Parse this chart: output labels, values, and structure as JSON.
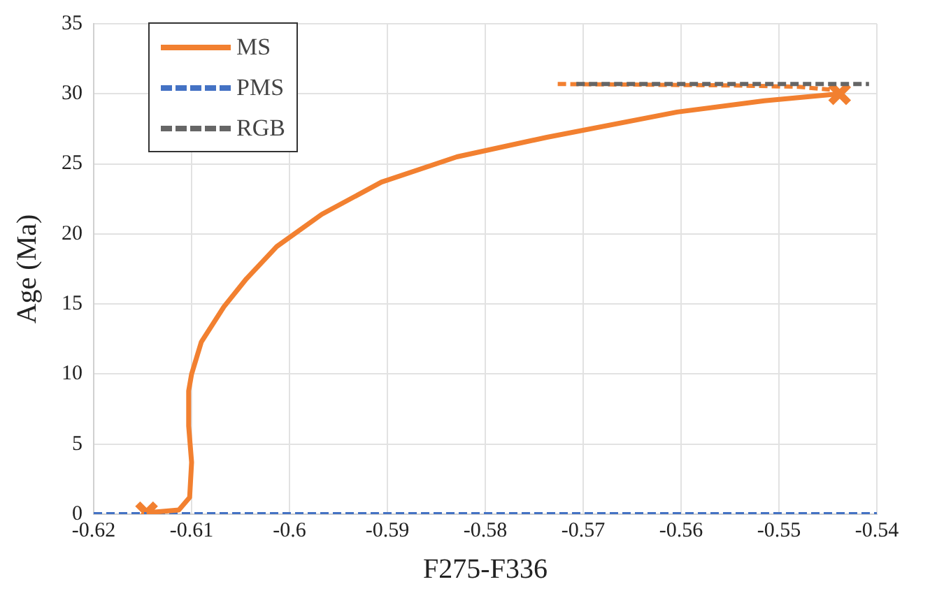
{
  "chart_data": {
    "type": "line",
    "xlabel": "F275-F336",
    "ylabel": "Age (Ma)",
    "xlim": [
      -0.62,
      -0.54
    ],
    "xticks": [
      -0.62,
      -0.61,
      -0.6,
      -0.59,
      -0.58,
      -0.57,
      -0.56,
      -0.55,
      -0.54
    ],
    "ylim": [
      0,
      35
    ],
    "yticks": [
      0,
      5,
      10,
      15,
      20,
      25,
      30,
      35
    ],
    "grid": true,
    "legend": "top left",
    "series": [
      {
        "name": "MS",
        "type": "line",
        "color": "#f28030",
        "line_style": "solid",
        "marker": "none",
        "x": [
          -0.6146,
          -0.6113,
          -0.6102,
          -0.61,
          -0.6103,
          -0.6103,
          -0.61,
          -0.609,
          -0.6067,
          -0.6044,
          -0.6013,
          -0.5967,
          -0.5906,
          -0.5829,
          -0.5737,
          -0.5604,
          -0.5515,
          -0.5438
        ],
        "values": [
          0.1,
          0.3,
          1.2,
          3.7,
          6.3,
          8.8,
          10,
          12.3,
          14.8,
          16.8,
          19.1,
          21.4,
          23.7,
          25.5,
          26.9,
          28.7,
          29.5,
          30
        ]
      },
      {
        "name": "PMS",
        "type": "line",
        "color": "#4472c4",
        "line_style": "dashed",
        "marker": "none",
        "x": [
          -0.62,
          -0.54
        ],
        "values": [
          0,
          0
        ]
      },
      {
        "name": "RGB",
        "type": "line",
        "color": "#666666",
        "line_style": "dashed",
        "marker": "none",
        "x": [
          -0.5707,
          -0.5408
        ],
        "values": [
          30.7,
          30.7
        ]
      },
      {
        "type": "line",
        "color": "#f28030",
        "line_style": "dashed",
        "marker": "none",
        "x": [
          -0.5726,
          -0.555,
          -0.548,
          -0.5448
        ],
        "values": [
          30.7,
          30.6,
          30.5,
          30.3
        ]
      },
      {
        "type": "scatter",
        "color": "#f28030",
        "marker": "cross",
        "x": [
          -0.6146,
          -0.5438
        ],
        "values": [
          0.1,
          30
        ]
      }
    ]
  }
}
